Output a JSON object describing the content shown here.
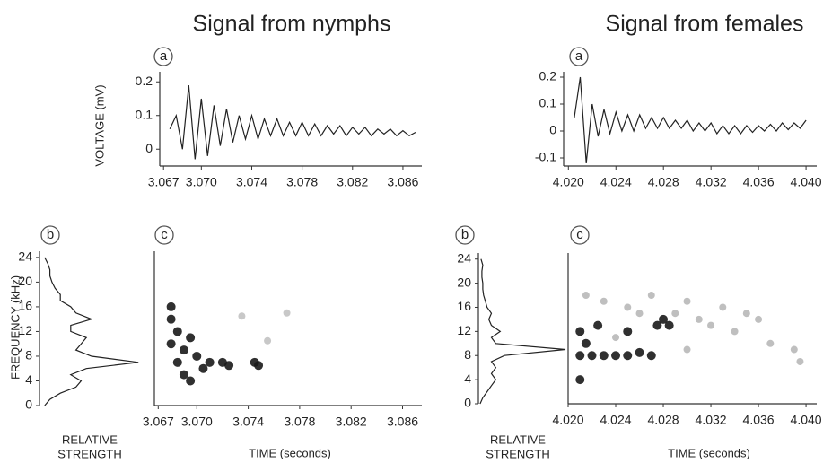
{
  "chart_data": [
    {
      "type": "line",
      "title": "Signal from nymphs",
      "label": "a",
      "ylabel": "VOLTAGE (mV)",
      "color": "#222",
      "x": [
        3.0675,
        3.068,
        3.0685,
        3.069,
        3.0695,
        3.07,
        3.0705,
        3.071,
        3.0715,
        3.072,
        3.0725,
        3.073,
        3.0735,
        3.074,
        3.0745,
        3.075,
        3.0755,
        3.076,
        3.0765,
        3.077,
        3.0775,
        3.078,
        3.0785,
        3.079,
        3.0795,
        3.08,
        3.0805,
        3.081,
        3.0815,
        3.082,
        3.0825,
        3.083,
        3.0835,
        3.084,
        3.0845,
        3.085,
        3.0855,
        3.086,
        3.0865,
        3.087
      ],
      "values": [
        0.06,
        0.1,
        0.0,
        0.19,
        -0.03,
        0.15,
        -0.02,
        0.13,
        0.01,
        0.12,
        0.02,
        0.1,
        0.03,
        0.1,
        0.03,
        0.09,
        0.04,
        0.09,
        0.04,
        0.08,
        0.04,
        0.08,
        0.04,
        0.075,
        0.04,
        0.07,
        0.045,
        0.07,
        0.04,
        0.065,
        0.045,
        0.065,
        0.04,
        0.06,
        0.045,
        0.06,
        0.04,
        0.055,
        0.04,
        0.05
      ],
      "xlim": [
        3.0667,
        3.0875
      ],
      "ylim": [
        -0.05,
        0.23
      ],
      "xticks": [
        3.067,
        {
          "value": 3.07,
          "label": "3.070"
        },
        3.074,
        3.078,
        3.082,
        3.086
      ],
      "yticks": [
        0,
        0.1,
        0.2
      ]
    },
    {
      "type": "line",
      "label": "b",
      "ylabel": "FREQUENCY (kHz)",
      "xlabel": [
        "RELATIVE",
        "STRENGTH"
      ],
      "color": "#222",
      "x": [
        0.05,
        0.1,
        0.2,
        0.35,
        0.4,
        0.3,
        0.45,
        0.95,
        0.5,
        0.35,
        0.4,
        0.45,
        0.3,
        0.3,
        0.5,
        0.35,
        0.3,
        0.2,
        0.2,
        0.15,
        0.12,
        0.1,
        0.1,
        0.08,
        0.05
      ],
      "values": [
        0,
        1,
        2,
        3,
        4,
        5,
        6,
        7,
        8,
        9,
        10,
        11,
        12,
        13,
        14,
        15,
        16,
        17,
        18,
        19,
        20,
        21,
        22,
        23,
        24
      ],
      "xlim": [
        0,
        1
      ],
      "ylim": [
        0,
        25
      ],
      "yticks": [
        0,
        4,
        8,
        12,
        16,
        20,
        24
      ]
    },
    {
      "type": "scatter",
      "label": "c",
      "xlabel": "TIME (seconds)",
      "series": [
        {
          "color": "#1a1a1a",
          "x": [
            3.068,
            3.068,
            3.0685,
            3.068,
            3.069,
            3.0685,
            3.069,
            3.0695,
            3.07,
            3.071,
            3.072,
            3.0725,
            3.0745,
            3.0748,
            3.0705,
            3.0695
          ],
          "values": [
            16,
            14,
            12,
            10,
            9,
            7,
            5,
            4,
            8,
            7,
            7,
            6.5,
            7,
            6.5,
            6,
            11
          ]
        },
        {
          "color": "#9a9a9a",
          "x": [
            3.0735,
            3.0755,
            3.077
          ],
          "values": [
            14.5,
            10.5,
            15
          ]
        }
      ],
      "xlim": [
        3.0667,
        3.0875
      ],
      "ylim": [
        0,
        25
      ],
      "xticks": [
        3.067,
        {
          "value": 3.07,
          "label": "3.070"
        },
        3.074,
        3.078,
        3.082,
        3.086
      ]
    },
    {
      "type": "line",
      "title": "Signal from females",
      "label": "a",
      "color": "#222",
      "x": [
        4.0205,
        4.021,
        4.0215,
        4.022,
        4.0225,
        4.023,
        4.0235,
        4.024,
        4.0245,
        4.025,
        4.0255,
        4.026,
        4.0265,
        4.027,
        4.0275,
        4.028,
        4.0285,
        4.029,
        4.0295,
        4.03,
        4.0305,
        4.031,
        4.0315,
        4.032,
        4.0325,
        4.033,
        4.0335,
        4.034,
        4.0345,
        4.035,
        4.0355,
        4.036,
        4.0365,
        4.037,
        4.0375,
        4.038,
        4.0385,
        4.039,
        4.0395,
        4.04
      ],
      "values": [
        0.05,
        0.2,
        -0.12,
        0.1,
        -0.02,
        0.08,
        -0.01,
        0.07,
        0,
        0.06,
        0,
        0.06,
        0.01,
        0.05,
        0.01,
        0.05,
        0.01,
        0.04,
        0.01,
        0.04,
        0,
        0.03,
        0,
        0.03,
        -0.01,
        0.02,
        -0.01,
        0.02,
        -0.01,
        0.02,
        -0.005,
        0.02,
        0,
        0.025,
        0,
        0.03,
        0.005,
        0.03,
        0.01,
        0.04
      ],
      "xlim": [
        4.0196,
        4.0409
      ],
      "ylim": [
        -0.13,
        0.22
      ],
      "xticks": [
        {
          "value": 4.02,
          "label": "4.020"
        },
        4.024,
        4.028,
        4.032,
        4.036,
        {
          "value": 4.04,
          "label": "4.040"
        }
      ],
      "yticks": [
        -0.1,
        0,
        0.1,
        0.2
      ]
    },
    {
      "type": "line",
      "label": "b",
      "xlabel": [
        "RELATIVE",
        "STRENGTH"
      ],
      "color": "#222",
      "x": [
        0.02,
        0.05,
        0.1,
        0.15,
        0.2,
        0.15,
        0.2,
        0.15,
        0.3,
        1.0,
        0.2,
        0.15,
        0.25,
        0.15,
        0.12,
        0.15,
        0.1,
        0.08,
        0.06,
        0.05,
        0.05,
        0.04,
        0.04,
        0.05,
        0.03
      ],
      "values": [
        0,
        1,
        2,
        3,
        4,
        5,
        6,
        7,
        8,
        9,
        10,
        11,
        12,
        13,
        14,
        15,
        16,
        17,
        18,
        19,
        20,
        21,
        22,
        23,
        24
      ],
      "xlim": [
        0,
        1
      ],
      "ylim": [
        0,
        25
      ],
      "yticks": [
        0,
        4,
        8,
        12,
        16,
        20,
        24
      ]
    },
    {
      "type": "scatter",
      "label": "c",
      "xlabel": "TIME (seconds)",
      "series": [
        {
          "color": "#1a1a1a",
          "x": [
            4.021,
            4.021,
            4.0215,
            4.022,
            4.023,
            4.024,
            4.025,
            4.026,
            4.027,
            4.0275,
            4.0225,
            4.025,
            4.028,
            4.0285,
            4.021
          ],
          "values": [
            8,
            12,
            10,
            8,
            8,
            8,
            8,
            8.5,
            8,
            13,
            13,
            12,
            14,
            13,
            4
          ]
        },
        {
          "color": "#8a8a8a",
          "x": [
            4.0215,
            4.023,
            4.025,
            4.027,
            4.029,
            4.03,
            4.031,
            4.032,
            4.033,
            4.034,
            4.035,
            4.036,
            4.037,
            4.039,
            4.0395,
            4.024,
            4.026,
            4.03
          ],
          "values": [
            18,
            17,
            16,
            18,
            15,
            17,
            14,
            13,
            16,
            12,
            15,
            14,
            10,
            9,
            7,
            11,
            15,
            9
          ]
        }
      ],
      "xlim": [
        4.02,
        4.0409
      ],
      "ylim": [
        0,
        25
      ],
      "xticks": [
        {
          "value": 4.02,
          "label": "4.020"
        },
        4.024,
        4.028,
        4.032,
        4.036,
        {
          "value": 4.04,
          "label": "4.040"
        }
      ]
    }
  ]
}
